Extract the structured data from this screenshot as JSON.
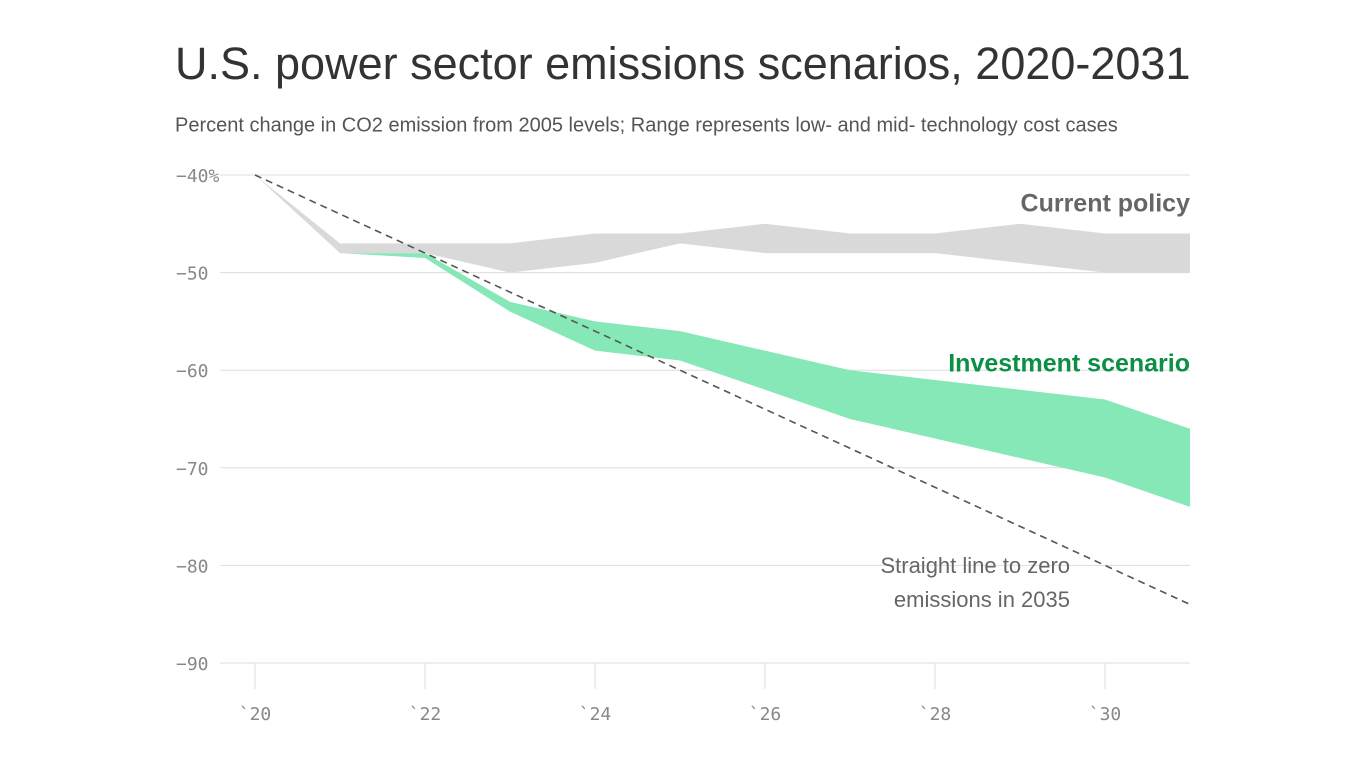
{
  "chart_data": {
    "type": "range-area",
    "title": "U.S. power sector emissions scenarios, 2020-2031",
    "subtitle": "Percent change in CO2 emission from 2005 levels; Range represents low- and mid- technology cost cases",
    "x": [
      2020,
      2021,
      2022,
      2023,
      2024,
      2025,
      2026,
      2027,
      2028,
      2029,
      2030,
      2031
    ],
    "series": [
      {
        "name": "Investment scenario",
        "color": "#86e8b6",
        "label_color": "#0a8f45",
        "high": [
          -40,
          -48,
          -48,
          -53,
          -55,
          -56,
          -58,
          -60,
          -61,
          -62,
          -63,
          -66
        ],
        "low": [
          -40,
          -48,
          -48.5,
          -54,
          -58,
          -59,
          -62,
          -65,
          -67,
          -69,
          -71,
          -74
        ]
      },
      {
        "name": "Current policy",
        "color": "#d9d9d9",
        "label_color": "#666666",
        "high": [
          -40,
          -47,
          -47,
          -47,
          -46,
          -46,
          -45,
          -46,
          -46,
          -45,
          -46,
          -46
        ],
        "low": [
          -40,
          -48,
          -48,
          -50,
          -49,
          -47,
          -48,
          -48,
          -48,
          -49,
          -50,
          -50
        ]
      }
    ],
    "reference_line": {
      "label": [
        "Straight line to zero",
        "emissions in 2035"
      ],
      "color": "#555555",
      "x": [
        2020,
        2031
      ],
      "values": [
        -40,
        -84
      ]
    },
    "xlim": [
      2020,
      2031
    ],
    "xticks": [
      {
        "value": 2020,
        "label": "`20"
      },
      {
        "value": 2022,
        "label": "`22"
      },
      {
        "value": 2024,
        "label": "`24"
      },
      {
        "value": 2026,
        "label": "`26"
      },
      {
        "value": 2028,
        "label": "`28"
      },
      {
        "value": 2030,
        "label": "`30"
      }
    ],
    "ylim": [
      -90,
      -40
    ],
    "yticks": [
      {
        "value": -40,
        "label": "−40%"
      },
      {
        "value": -50,
        "label": "−50"
      },
      {
        "value": -60,
        "label": "−60"
      },
      {
        "value": -70,
        "label": "−70"
      },
      {
        "value": -80,
        "label": "−80"
      },
      {
        "value": -90,
        "label": "−90"
      }
    ],
    "grid": true
  }
}
